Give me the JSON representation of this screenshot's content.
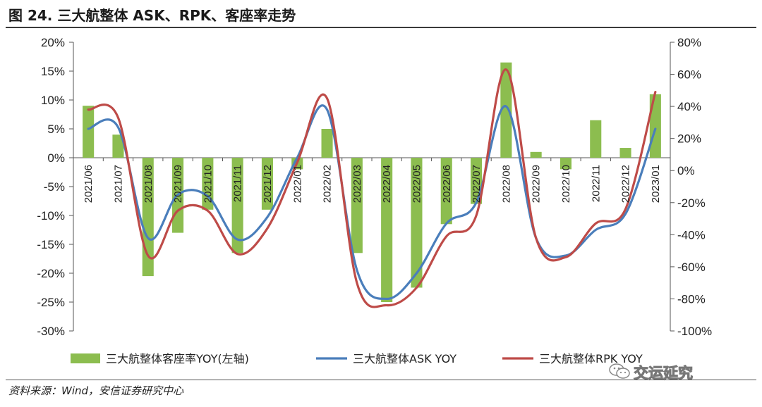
{
  "title": "图 24. 三大航整体 ASK、RPK、客座率走势",
  "source": "资料来源：Wind，安信证券研究中心",
  "watermark": "交运延究",
  "colors": {
    "bar": "#8cbd4f",
    "ask": "#4a7ebb",
    "rpk": "#be4b48"
  },
  "chart_data": {
    "type": "bar+line",
    "categories": [
      "2021/06",
      "2021/07",
      "2021/08",
      "2021/09",
      "2021/10",
      "2021/11",
      "2021/12",
      "2022/01",
      "2022/02",
      "2022/03",
      "2022/04",
      "2022/05",
      "2022/06",
      "2022/07",
      "2022/08",
      "2022/09",
      "2022/10",
      "2022/11",
      "2022/12",
      "2023/01"
    ],
    "left_axis": {
      "ylim": [
        -30,
        20
      ],
      "ticks": [
        "20%",
        "15%",
        "10%",
        "5%",
        "0%",
        "-5%",
        "-10%",
        "-15%",
        "-20%",
        "-25%",
        "-30%"
      ]
    },
    "right_axis": {
      "ylim": [
        -100,
        80
      ],
      "ticks": [
        "80%",
        "60%",
        "40%",
        "20%",
        "0%",
        "-20%",
        "-40%",
        "-60%",
        "-80%",
        "-100%"
      ]
    },
    "series": [
      {
        "name": "三大航整体客座率YOY(左轴)",
        "type": "bar",
        "axis": "left",
        "values": [
          9.0,
          4.0,
          -20.5,
          -13.0,
          -9.0,
          -16.5,
          -9.0,
          -2.0,
          5.0,
          -16.5,
          -25.0,
          -22.5,
          -11.5,
          -8.0,
          16.5,
          1.0,
          -2.0,
          6.5,
          1.7,
          11.0
        ]
      },
      {
        "name": "三大航整体ASK YOY",
        "type": "line",
        "axis": "right",
        "values": [
          26,
          27,
          -42,
          -15,
          -16,
          -43,
          -29,
          8,
          38,
          -62,
          -80,
          -64,
          -33,
          -20,
          40,
          -42,
          -53,
          -37,
          -27,
          26
        ]
      },
      {
        "name": "三大航整体RPK YOY",
        "type": "line",
        "axis": "right",
        "values": [
          38,
          33,
          -53,
          -25,
          -25,
          -52,
          -36,
          5,
          45,
          -70,
          -84,
          -73,
          -41,
          -28,
          63,
          -42,
          -54,
          -33,
          -24,
          49
        ]
      }
    ]
  }
}
